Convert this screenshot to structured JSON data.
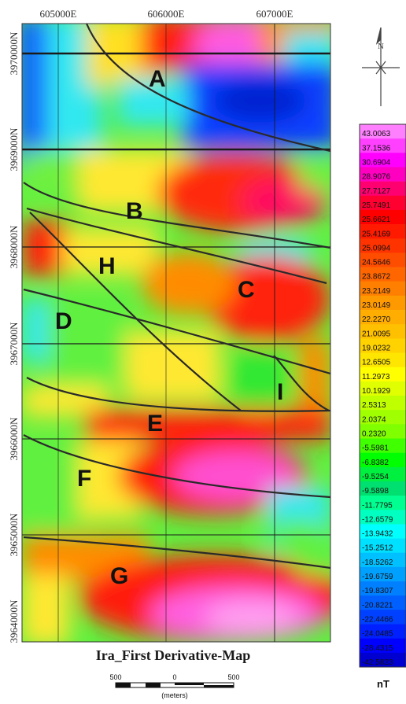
{
  "map": {
    "title": "Ira_First Derivative-Map",
    "easting_labels": [
      "605000E",
      "606000E",
      "607000E"
    ],
    "northing_labels": [
      "3970000N",
      "3969000N",
      "3968000N",
      "3967000N",
      "3966000N",
      "3965000N",
      "3964000N"
    ],
    "zones": [
      "A",
      "B",
      "H",
      "C",
      "D",
      "I",
      "E",
      "F",
      "G"
    ]
  },
  "north_arrow": {
    "label": "N"
  },
  "scale_bar": {
    "ticks": [
      "500",
      "0",
      "500"
    ],
    "unit": "(meters)"
  },
  "legend": {
    "unit": "nT",
    "values": [
      "43.0063",
      "37.1536",
      "30.6904",
      "28.9076",
      "27.7127",
      "25.7491",
      "25.6621",
      "25.4169",
      "25.0994",
      "24.5646",
      "23.8672",
      "23.2149",
      "23.0149",
      "22.2270",
      "21.0095",
      "19.0232",
      "12.6505",
      "11.2973",
      "10.1929",
      "2.5313",
      "2.0374",
      "0.2320",
      "-5.5981",
      "-6.8382",
      "-9.5254",
      "-9.5898",
      "-11.7795",
      "-12.6579",
      "-13.9432",
      "-15.2512",
      "-18.5262",
      "-19.6759",
      "-19.8307",
      "-20.8221",
      "-22.4466",
      "-24.0485",
      "-28.4315",
      "-42.5823"
    ],
    "colors": [
      "#ff80ff",
      "#ff40ff",
      "#ff00ff",
      "#ff00c0",
      "#ff0070",
      "#ff0030",
      "#ff0000",
      "#ff1a00",
      "#ff3300",
      "#ff4d00",
      "#ff6600",
      "#ff8000",
      "#ff9900",
      "#ffad00",
      "#ffc000",
      "#ffd200",
      "#ffe600",
      "#ffff00",
      "#e0ff00",
      "#c0ff00",
      "#a0ff00",
      "#80ff00",
      "#40ff00",
      "#00ff00",
      "#00f040",
      "#00e070",
      "#00ff90",
      "#00ffc0",
      "#00ffff",
      "#00e0ff",
      "#00c0ff",
      "#00a0ff",
      "#0080ff",
      "#0060ff",
      "#0040ff",
      "#0020ff",
      "#0000ff",
      "#0000d0"
    ]
  },
  "colors": {
    "red": "#ff1e10",
    "magenta": "#ff5ce0",
    "pink": "#ff9af0",
    "orange": "#ff7a00",
    "yellow": "#ffff30",
    "green": "#60f040",
    "cyan": "#30f0f0",
    "blue": "#1050ff",
    "lines": "#2a2a2a"
  }
}
